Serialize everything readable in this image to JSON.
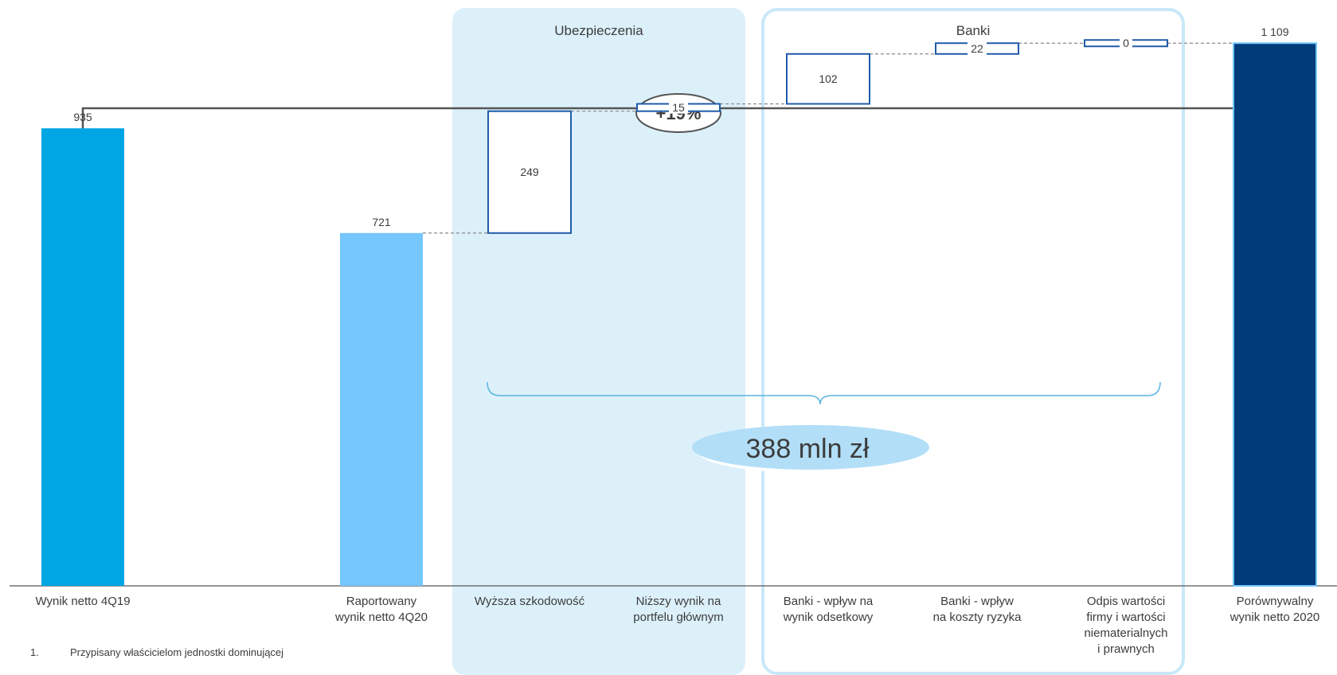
{
  "sections": [
    {
      "label": "Ubezpieczenia"
    },
    {
      "label": "Banki"
    }
  ],
  "change_label": "+19%",
  "total_label": "388 mln zł",
  "footnote": {
    "number": "1.",
    "text": "Przypisany właścicielom jednostki dominującej"
  },
  "colors": {
    "start_bar": "#00a6e3",
    "reported_bar": "#74c6fc",
    "end_bar": "#003b7a",
    "delta_box": "#1f5ba8",
    "ins_panel": "#dcf0fa",
    "bank_panel_border": "#c8e8f8",
    "brace": "#5ab4e0",
    "ellipse": "#b2def7"
  },
  "chart_data": {
    "type": "waterfall",
    "ylim": [
      0,
      1180
    ],
    "steps": [
      {
        "label_lines": [
          "Wynik netto 4Q19"
        ],
        "value": 935,
        "value_label": "935",
        "kind": "total"
      },
      {
        "label_lines": [
          "Raportowany",
          "wynik netto 4Q20"
        ],
        "value": 721,
        "value_label": "721",
        "kind": "total"
      },
      {
        "label_lines": [
          "Wyższa szkodowość"
        ],
        "value": 249,
        "value_label": "249",
        "kind": "delta"
      },
      {
        "label_lines": [
          "Niższy wynik na",
          "portfelu głównym"
        ],
        "value": 15,
        "value_label": "15",
        "kind": "delta"
      },
      {
        "label_lines": [
          "Banki - wpływ na",
          "wynik odsetkowy"
        ],
        "value": 102,
        "value_label": "102",
        "kind": "delta"
      },
      {
        "label_lines": [
          "Banki - wpływ",
          "na koszty ryzyka"
        ],
        "value": 22,
        "value_label": "22",
        "kind": "delta"
      },
      {
        "label_lines": [
          "Odpis wartości",
          "firmy i wartości",
          "niematerialnych",
          "i prawnych"
        ],
        "value": 0,
        "value_label": "0",
        "kind": "delta"
      },
      {
        "label_lines": [
          "Porównywalny",
          "wynik netto 2020"
        ],
        "value": 1109,
        "value_label": "1 109",
        "kind": "total"
      }
    ]
  }
}
